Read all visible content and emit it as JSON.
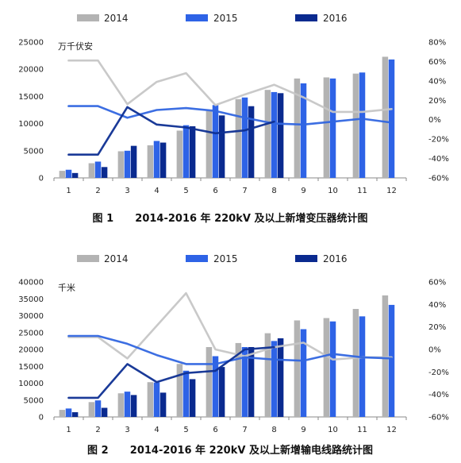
{
  "chart_data": [
    {
      "type": "bar",
      "caption": "图 1      2014-2016 年 220kV 及以上新增变压器统计图",
      "unit_label": "万千伏安",
      "categories": [
        "1",
        "2",
        "3",
        "4",
        "5",
        "6",
        "7",
        "8",
        "9",
        "10",
        "11",
        "12"
      ],
      "legend": [
        "2014",
        "2015",
        "2016"
      ],
      "ylim": [
        0,
        25000
      ],
      "y_ticks": [
        0,
        5000,
        10000,
        15000,
        20000,
        25000
      ],
      "y2lim": [
        -60,
        80
      ],
      "y2_ticks": [
        "-60%",
        "-40%",
        "-20%",
        "0%",
        "20%",
        "40%",
        "60%",
        "80%"
      ],
      "series": [
        {
          "name": "2014",
          "color": "#b3b3b3",
          "values": [
            1300,
            2700,
            4900,
            6000,
            8700,
            12300,
            14500,
            16200,
            18300,
            18500,
            19200,
            22300
          ]
        },
        {
          "name": "2015",
          "color": "#2e63e6",
          "values": [
            1500,
            3000,
            5000,
            6800,
            9700,
            13400,
            14800,
            15800,
            17400,
            18300,
            19400,
            21800
          ]
        },
        {
          "name": "2016",
          "color": "#0a2a8f",
          "values": [
            900,
            2000,
            5900,
            6500,
            9500,
            11500,
            13200,
            15600,
            null,
            null,
            null,
            null
          ]
        }
      ],
      "growth_series": [
        {
          "name": "2014",
          "color": "#c6c6c6",
          "values": [
            61,
            61,
            16,
            39,
            48,
            15,
            26,
            36,
            23,
            8,
            8,
            11
          ]
        },
        {
          "name": "2015",
          "color": "#3166e0",
          "values": [
            14,
            14,
            2,
            10,
            12,
            9,
            2,
            -4,
            -5,
            -2,
            1,
            -3
          ]
        },
        {
          "name": "2016",
          "color": "#0e2f92",
          "values": [
            -36,
            -36,
            13,
            -5,
            -8,
            -14,
            -11,
            -2,
            null,
            null,
            null,
            null
          ]
        }
      ]
    },
    {
      "type": "bar",
      "caption": "图 2      2014-2016 年 220kV 及以上新增输电线路统计图",
      "unit_label": "千米",
      "categories": [
        "1",
        "2",
        "3",
        "4",
        "5",
        "6",
        "7",
        "8",
        "9",
        "10",
        "11",
        "12"
      ],
      "legend": [
        "2014",
        "2015",
        "2016"
      ],
      "ylim": [
        0,
        40000
      ],
      "y_ticks": [
        0,
        5000,
        10000,
        15000,
        20000,
        25000,
        30000,
        35000,
        40000
      ],
      "y2lim": [
        -60,
        60
      ],
      "y2_ticks": [
        "-60%",
        "-40%",
        "-20%",
        "0%",
        "20%",
        "40%",
        "60%"
      ],
      "series": [
        {
          "name": "2014",
          "color": "#b3b3b3",
          "values": [
            2100,
            4400,
            7000,
            10300,
            15700,
            20700,
            21900,
            24800,
            28600,
            29300,
            32000,
            36000
          ]
        },
        {
          "name": "2015",
          "color": "#2e63e6",
          "values": [
            2500,
            4900,
            7500,
            10200,
            13700,
            18000,
            20700,
            22500,
            26000,
            28300,
            29800,
            33200
          ]
        },
        {
          "name": "2016",
          "color": "#0a2a8f",
          "values": [
            1400,
            2700,
            6500,
            7200,
            11200,
            14800,
            20700,
            23300,
            null,
            null,
            null,
            null
          ]
        }
      ],
      "growth_series": [
        {
          "name": "2014",
          "color": "#c6c6c6",
          "values": [
            11,
            11,
            -8,
            21,
            50,
            0,
            -6,
            2,
            6,
            -9,
            -7,
            -7
          ]
        },
        {
          "name": "2015",
          "color": "#3166e0",
          "values": [
            12,
            12,
            5,
            -5,
            -13,
            -13,
            -7,
            -9,
            -10,
            -4,
            -7,
            -8
          ]
        },
        {
          "name": "2016",
          "color": "#0e2f92",
          "values": [
            -43,
            -43,
            -13,
            -29,
            -21,
            -19,
            0,
            2,
            null,
            null,
            null,
            null
          ]
        }
      ]
    }
  ]
}
